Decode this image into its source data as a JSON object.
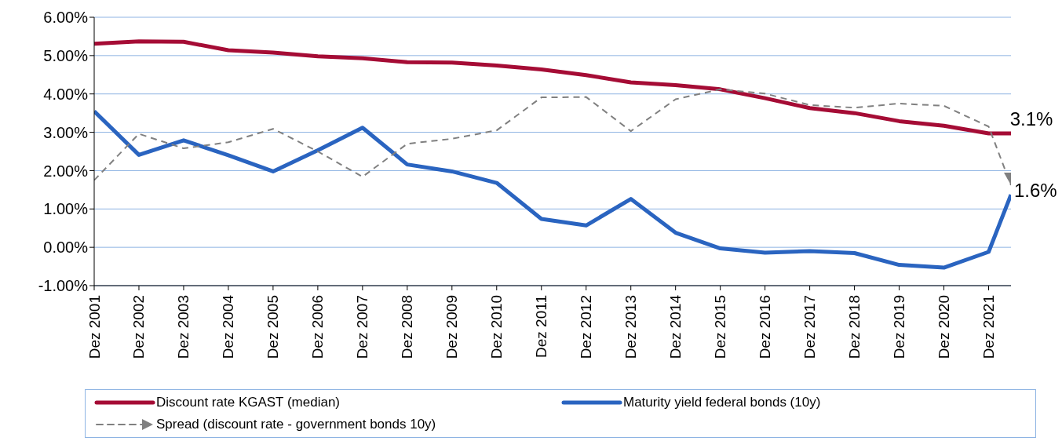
{
  "chart_data": {
    "type": "line",
    "x": [
      "2001-12",
      "2002-12",
      "2003-12",
      "2004-12",
      "2005-12",
      "2006-12",
      "2007-12",
      "2008-12",
      "2009-12",
      "2010-12",
      "2011-12",
      "2012-12",
      "2013-12",
      "2014-12",
      "2015-12",
      "2016-12",
      "2017-12",
      "2018-12",
      "2019-12",
      "2020-12",
      "2021-12",
      "2022-06"
    ],
    "series": [
      {
        "name": "Discount rate KGAST (median)",
        "color": "#a50c35",
        "values": [
          5.31,
          5.37,
          5.36,
          5.14,
          5.08,
          4.98,
          4.93,
          4.83,
          4.82,
          4.74,
          4.64,
          4.49,
          4.3,
          4.23,
          4.12,
          3.89,
          3.63,
          3.5,
          3.29,
          3.17,
          2.97,
          2.97
        ]
      },
      {
        "name": "Maturity yield federal bonds (10y)",
        "color": "#2a64c0",
        "values": [
          3.55,
          2.41,
          2.79,
          2.4,
          1.98,
          2.53,
          3.12,
          2.16,
          1.98,
          1.68,
          0.74,
          0.57,
          1.26,
          0.38,
          -0.03,
          -0.14,
          -0.1,
          -0.15,
          -0.46,
          -0.53,
          -0.12,
          1.37
        ]
      },
      {
        "name": "Spread (discount rate - government bonds 10y)",
        "color": "#808080",
        "line_style": "dashed",
        "values": [
          1.75,
          2.96,
          2.58,
          2.74,
          3.09,
          2.5,
          1.84,
          2.7,
          2.83,
          3.05,
          3.91,
          3.92,
          3.03,
          3.86,
          4.12,
          4.01,
          3.71,
          3.64,
          3.75,
          3.69,
          3.15,
          1.62
        ]
      }
    ],
    "xlim": [
      "2001-12",
      "2022-06"
    ],
    "xticks": [
      {
        "value": "2001-12",
        "label": "Dez 2001"
      },
      {
        "value": "2002-12",
        "label": "Dez 2002"
      },
      {
        "value": "2003-12",
        "label": "Dez 2003"
      },
      {
        "value": "2004-12",
        "label": "Dez 2004"
      },
      {
        "value": "2005-12",
        "label": "Dez 2005"
      },
      {
        "value": "2006-12",
        "label": "Dez 2006"
      },
      {
        "value": "2007-12",
        "label": "Dez 2007"
      },
      {
        "value": "2008-12",
        "label": "Dez 2008"
      },
      {
        "value": "2009-12",
        "label": "Dez 2009"
      },
      {
        "value": "2010-12",
        "label": "Dez 2010"
      },
      {
        "value": "2011-12",
        "label": "Dez 2011"
      },
      {
        "value": "2012-12",
        "label": "Dez 2012"
      },
      {
        "value": "2013-12",
        "label": "Dez 2013"
      },
      {
        "value": "2014-12",
        "label": "Dez 2014"
      },
      {
        "value": "2015-12",
        "label": "Dez 2015"
      },
      {
        "value": "2016-12",
        "label": "Dez 2016"
      },
      {
        "value": "2017-12",
        "label": "Dez 2017"
      },
      {
        "value": "2018-12",
        "label": "Dez 2018"
      },
      {
        "value": "2019-12",
        "label": "Dez 2019"
      },
      {
        "value": "2020-12",
        "label": "Dez 2020"
      },
      {
        "value": "2021-12",
        "label": "Dez 2021"
      }
    ],
    "ylim": [
      -1,
      6
    ],
    "yticks": [
      {
        "value": -1,
        "label": "-1.00%"
      },
      {
        "value": 0,
        "label": "0.00%"
      },
      {
        "value": 1,
        "label": "1.00%"
      },
      {
        "value": 2,
        "label": "2.00%"
      },
      {
        "value": 3,
        "label": "3.00%"
      },
      {
        "value": 4,
        "label": "4.00%"
      },
      {
        "value": 5,
        "label": "5.00%"
      },
      {
        "value": 6,
        "label": "6.00%"
      }
    ],
    "grid": "y",
    "legend": "bottom",
    "annotations": [
      {
        "text": "3.1%",
        "x": "2022-06",
        "y": 2.97
      },
      {
        "text": "1.6%",
        "x": "2022-06",
        "y": 1.37
      }
    ]
  }
}
